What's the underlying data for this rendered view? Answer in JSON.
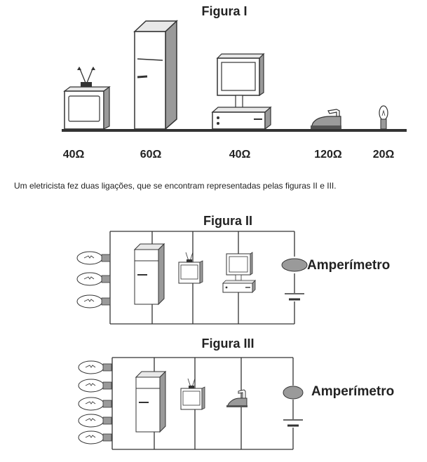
{
  "figure1": {
    "title": "Figura I",
    "resistances": [
      "40Ω",
      "60Ω",
      "40Ω",
      "120Ω",
      "20Ω"
    ]
  },
  "sentence": "Um eletricista fez duas ligações, que se encontram representadas pelas figuras II e III.",
  "figure2": {
    "title": "Figura II",
    "ammeter_label": "Amperímetro",
    "lamp_count": 3
  },
  "figure3": {
    "title": "Figura III",
    "ammeter_label": "Amperímetro",
    "lamp_count": 5
  },
  "colors": {
    "stroke": "#333333",
    "fill_gray": "#9a9a9a",
    "fill_light": "#e8e8e8"
  }
}
